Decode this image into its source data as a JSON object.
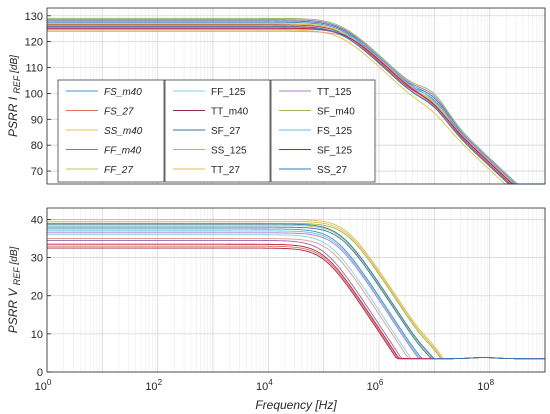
{
  "chart_data": [
    {
      "type": "line",
      "xscale": "log",
      "xlim": [
        1,
        1000000000
      ],
      "ylim": [
        65,
        133
      ],
      "yticks": [
        70,
        80,
        90,
        100,
        110,
        120,
        130
      ],
      "ylabel": "PSRR I",
      "ylabel_sub": "REF",
      "ylabel_unit": "[dB]",
      "grid": true,
      "legend": "lower-left",
      "series": [
        {
          "name": "FS_m40",
          "color": "#4a8fc4",
          "dc": 127.5,
          "corner": 5.3
        },
        {
          "name": "FS_27",
          "color": "#e0735e",
          "dc": 126.0,
          "corner": 5.3
        },
        {
          "name": "SS_m40",
          "color": "#e2c043",
          "dc": 124.5,
          "corner": 5.3
        },
        {
          "name": "FF_m40",
          "color": "#8d6bb5",
          "dc": 128.5,
          "corner": 5.3
        },
        {
          "name": "FF_27",
          "color": "#a9cf5a",
          "dc": 127.0,
          "corner": 5.3
        },
        {
          "name": "FF_125",
          "color": "#7fd0ec",
          "dc": 125.5,
          "corner": 5.4
        },
        {
          "name": "TT_m40",
          "color": "#9e2a4a",
          "dc": 126.5,
          "corner": 5.3
        },
        {
          "name": "SF_27",
          "color": "#3b70ad",
          "dc": 128.0,
          "corner": 5.3
        },
        {
          "name": "SS_125",
          "color": "#e39a88",
          "dc": 124.0,
          "corner": 5.5
        },
        {
          "name": "TT_27",
          "color": "#e8ba58",
          "dc": 126.8,
          "corner": 5.3
        },
        {
          "name": "TT_125",
          "color": "#b07cc8",
          "dc": 125.0,
          "corner": 5.4
        },
        {
          "name": "SF_m40",
          "color": "#9cb45a",
          "dc": 129.0,
          "corner": 5.3
        },
        {
          "name": "FS_125",
          "color": "#66c2e4",
          "dc": 124.8,
          "corner": 5.5
        },
        {
          "name": "SF_125",
          "color": "#c21a3c",
          "dc": 125.2,
          "corner": 5.4
        },
        {
          "name": "SS_27",
          "color": "#2f7ab8",
          "dc": 125.8,
          "corner": 5.3
        }
      ]
    },
    {
      "type": "line",
      "xscale": "log",
      "xlim": [
        1,
        1000000000
      ],
      "ylim": [
        0,
        43
      ],
      "yticks": [
        0,
        10,
        20,
        30,
        40
      ],
      "xticks": [
        "10^0",
        "10^2",
        "10^4",
        "10^6",
        "10^8"
      ],
      "xlabel": "Frequency [Hz]",
      "ylabel": "PSRR V",
      "ylabel_sub": "REF",
      "ylabel_unit": "[dB]",
      "grid": true,
      "series": [
        {
          "name": "FS_m40",
          "color": "#4a8fc4",
          "dc": 37.5,
          "corner": 5.2
        },
        {
          "name": "FS_27",
          "color": "#e0735e",
          "dc": 33.0,
          "corner": 5.0
        },
        {
          "name": "SS_m40",
          "color": "#e2c043",
          "dc": 39.5,
          "corner": 5.4
        },
        {
          "name": "FF_m40",
          "color": "#8d6bb5",
          "dc": 34.5,
          "corner": 5.0
        },
        {
          "name": "FF_27",
          "color": "#a9cf5a",
          "dc": 38.5,
          "corner": 5.3
        },
        {
          "name": "FF_125",
          "color": "#7fd0ec",
          "dc": 36.0,
          "corner": 5.1
        },
        {
          "name": "TT_m40",
          "color": "#9e2a4a",
          "dc": 32.5,
          "corner": 5.0
        },
        {
          "name": "SF_27",
          "color": "#3b70ad",
          "dc": 38.0,
          "corner": 5.3
        },
        {
          "name": "SS_125",
          "color": "#e39a88",
          "dc": 35.0,
          "corner": 5.1
        },
        {
          "name": "TT_27",
          "color": "#e8ba58",
          "dc": 40.0,
          "corner": 5.4
        },
        {
          "name": "TT_125",
          "color": "#b07cc8",
          "dc": 36.5,
          "corner": 5.2
        },
        {
          "name": "SF_m40",
          "color": "#9cb45a",
          "dc": 39.0,
          "corner": 5.4
        },
        {
          "name": "FS_125",
          "color": "#66c2e4",
          "dc": 37.0,
          "corner": 5.2
        },
        {
          "name": "SF_125",
          "color": "#c21a3c",
          "dc": 33.5,
          "corner": 5.0
        },
        {
          "name": "SS_27",
          "color": "#2f7ab8",
          "dc": 38.8,
          "corner": 5.3
        }
      ]
    }
  ],
  "legend_columns": [
    [
      {
        "label": "FS_m40",
        "italic": true
      },
      {
        "label": "FS_27",
        "italic": true
      },
      {
        "label": "SS_m40",
        "italic": true
      },
      {
        "label": "FF_m40",
        "italic": true
      },
      {
        "label": "FF_27",
        "italic": true
      }
    ],
    [
      {
        "label": "FF_125",
        "italic": false
      },
      {
        "label": "TT_m40",
        "italic": false
      },
      {
        "label": "SF_27",
        "italic": false
      },
      {
        "label": "SS_125",
        "italic": false
      },
      {
        "label": "TT_27",
        "italic": false
      }
    ],
    [
      {
        "label": "TT_125",
        "italic": false
      },
      {
        "label": "SF_m40",
        "italic": false
      },
      {
        "label": "FS_125",
        "italic": false
      },
      {
        "label": "SF_125",
        "italic": false
      },
      {
        "label": "SS_27",
        "italic": false
      }
    ]
  ]
}
